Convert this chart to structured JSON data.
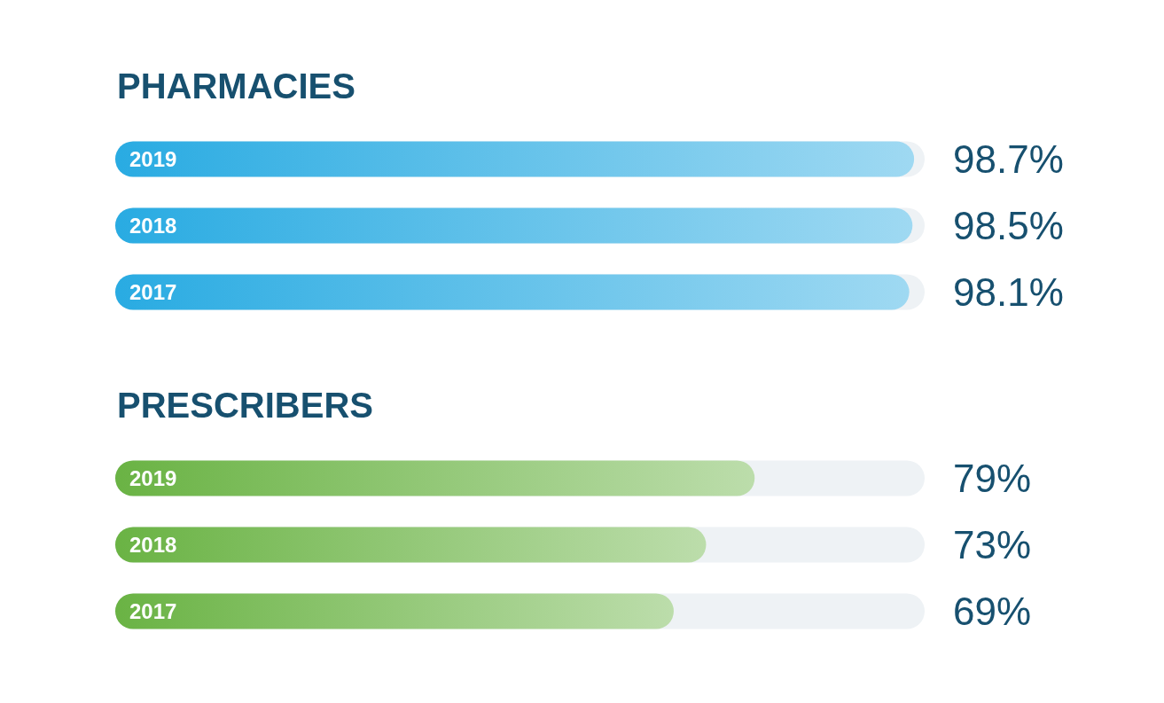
{
  "chart_data": [
    {
      "type": "bar",
      "title": "PHARMACIES",
      "orientation": "horizontal",
      "categories": [
        "2019",
        "2018",
        "2017"
      ],
      "values": [
        98.7,
        98.5,
        98.1
      ],
      "value_labels": [
        "98.7%",
        "98.5%",
        "98.1%"
      ],
      "color": "#29abe2",
      "xlim": [
        0,
        100
      ],
      "tick_labels": "y",
      "grid": false
    },
    {
      "type": "bar",
      "title": "PRESCRIBERS",
      "orientation": "horizontal",
      "categories": [
        "2019",
        "2018",
        "2017"
      ],
      "values": [
        79,
        73,
        69
      ],
      "value_labels": [
        "79%",
        "73%",
        "69%"
      ],
      "color": "#6ab344",
      "xlim": [
        0,
        100
      ],
      "tick_labels": "y",
      "grid": false
    }
  ]
}
